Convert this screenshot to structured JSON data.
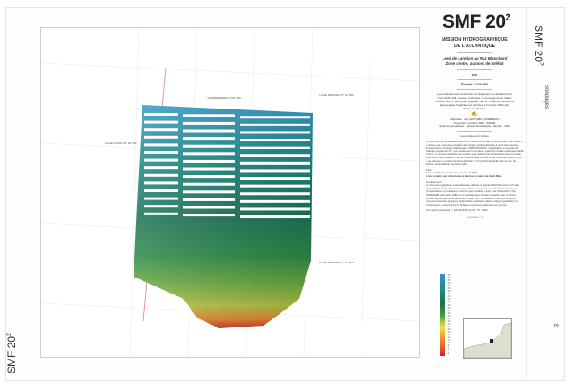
{
  "header": {
    "code": "SMF 20",
    "code_sup": "2"
  },
  "side": {
    "vertical_code": "SMF 20",
    "vertical_sup": "2",
    "sheet_label": "Sondages",
    "page_number": "2"
  },
  "panel": {
    "mission": "MISSION HYDROGRAPHIQUE",
    "region": "DE L'ATLANTIQUE",
    "survey": "Levé de Lannion au Raz Blanchard",
    "zone": "Zone centre, au nord de Bréhat",
    "year": "2001",
    "scale": "Échelle : 1/20 000",
    "credits": "Levé effectué sous la direction de l'ingénieur en chef des E.T.A Yves GUILLAM, directeur technique. Levé rédigé par le maître Frédéric ROTA, vérifié par l'ingénieur des E.T.A Benoîte MORIN et approuvé par l'ingénieur en chef des E.T.A Yves GUILLAM, directeur technique.",
    "geodesy": [
      "Ellipsoïde : IAG GRS 1980 (CANBERRA)",
      "Projection : Lambert 1993 - RGF93",
      "Système géodésique : Réseau Géodésique Français - 1993"
    ],
    "soundings_note": "Les sondes sont réelles",
    "description": "Ce document est la représentation d'un modèle numérique de terrain (MNT) de maille 5 m obtenu par moyenne pondérée des sondes réelles calculées à partir des mesures fournies par le sondeur multifaisceaux (SMF) EM1002S. Visualisation en pseudo 3D : éclairage portant au 45°. Les sondes sont reportées à partir du modèle numérique maillé à 10 m. Le zéro de réduction des sondes a été adopté par concordance avec le marée observée à Saint-Malo. Le zéro de réduction des sondes à Saint-Malo est situé à 14,69 m au-dessous du repère fondamental NGF n° N.Q.K3L3-40 scellé dans la tour du bastion Saint-Philippe (remparts sud).",
    "note_title": "Nota :",
    "notes": [
      "1. les isobathes sont générées à partir du MNT.",
      "2. les sondes sont référencées à la zone de marée de Saint-Malo."
    ],
    "warning_title": "Avertissement :",
    "warning": "Ce document graphique a été obtenu en utilisant le logiciel ARGOS (version 3.0.1 de février 2001). C'est un document de synthèse sur lequel on a cherché à donner une représentation du fond aussi conforme que possible à l'esprit de l'instruction n°512 SHOM/DEM du 3 juillet 1986 sur la rédaction des minutes (sélection des minimes, densité des sondes, délimitation des zones, etc.). L'utilisation d'ARGOS fait que ce document présente quelques particularités explicitées dans le rapport particulier. En conséquence, seuls font foi les fichiers numériques élaborés pour ce levé.",
    "report": "Voir rapport particulier n° 131 MHA/NP du 02 / 07 / 2002",
    "footer": "Sondages - 2"
  },
  "map": {
    "labels": [
      "LIGNE MERIDIEN 6° 30' 000",
      "LIGNE MERIDIEN 6° 30' 000",
      "LIGNE LIMITE 48° 48' 000",
      "LIGNE MERIDIEN 6° 30' 000"
    ],
    "palette": {
      "shallow": "#c02020",
      "mid": "#f0e040",
      "deep": "#1e6e50",
      "deepest": "#3b8fd0"
    }
  },
  "legend": {
    "depths": [
      "-60",
      "-58",
      "-56",
      "-54",
      "-52",
      "-50",
      "-48",
      "-46",
      "-44",
      "-42",
      "-40",
      "-38",
      "-36",
      "-34",
      "-32",
      "-30",
      "-28",
      "-26",
      "-24",
      "-22",
      "-20",
      "-18",
      "-16",
      "-14",
      "-12",
      "-10",
      "-8",
      "-6",
      "-4",
      "-2"
    ]
  }
}
